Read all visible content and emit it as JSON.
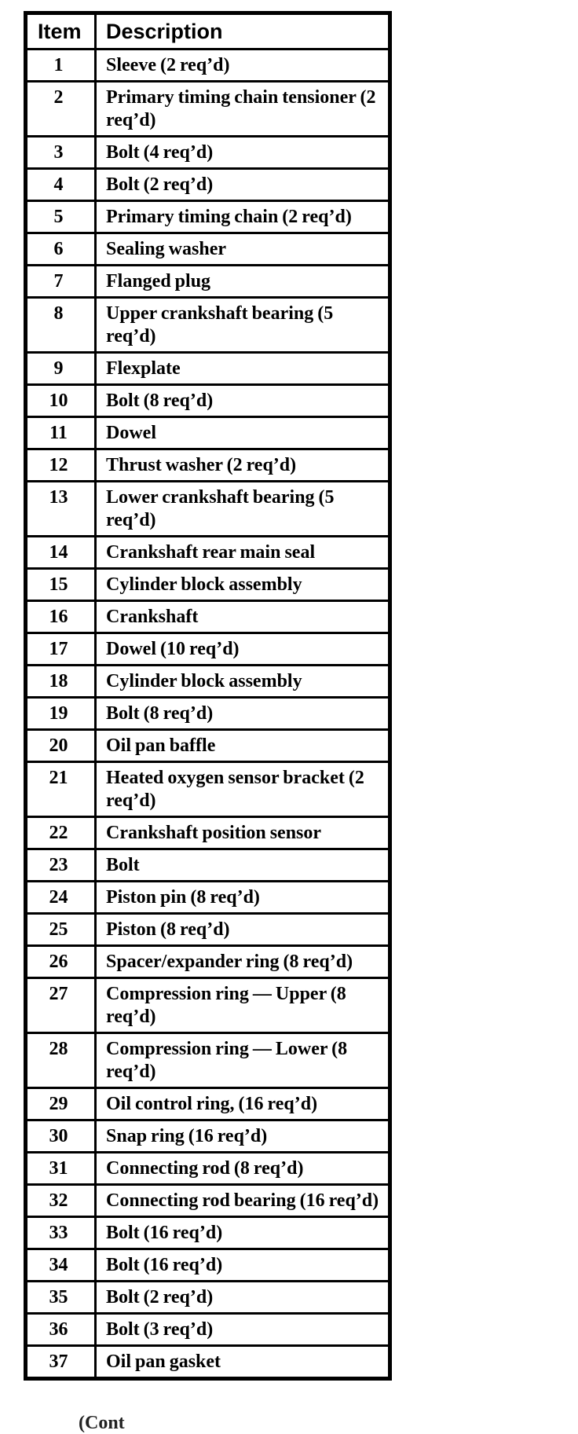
{
  "page": {
    "kind": "scanned parts list table",
    "ink_color": "#000000",
    "paper_color": "#ffffff"
  },
  "table": {
    "headers": {
      "item": "Item",
      "description": "Description"
    },
    "rows": [
      {
        "item": "1",
        "description": "Sleeve (2 req’d)"
      },
      {
        "item": "2",
        "description": "Primary timing chain tensioner (2 req’d)"
      },
      {
        "item": "3",
        "description": "Bolt (4 req’d)"
      },
      {
        "item": "4",
        "description": "Bolt (2 req’d)"
      },
      {
        "item": "5",
        "description": "Primary timing chain (2 req’d)"
      },
      {
        "item": "6",
        "description": "Sealing washer"
      },
      {
        "item": "7",
        "description": "Flanged plug"
      },
      {
        "item": "8",
        "description": "Upper crankshaft bearing (5 req’d)"
      },
      {
        "item": "9",
        "description": "Flexplate"
      },
      {
        "item": "10",
        "description": "Bolt (8 req’d)"
      },
      {
        "item": "11",
        "description": "Dowel"
      },
      {
        "item": "12",
        "description": "Thrust washer (2 req’d)"
      },
      {
        "item": "13",
        "description": "Lower crankshaft bearing (5 req’d)"
      },
      {
        "item": "14",
        "description": "Crankshaft rear main seal"
      },
      {
        "item": "15",
        "description": "Cylinder block assembly"
      },
      {
        "item": "16",
        "description": "Crankshaft"
      },
      {
        "item": "17",
        "description": "Dowel (10 req’d)"
      },
      {
        "item": "18",
        "description": "Cylinder block assembly"
      },
      {
        "item": "19",
        "description": "Bolt (8 req’d)"
      },
      {
        "item": "20",
        "description": "Oil pan baffle"
      },
      {
        "item": "21",
        "description": "Heated oxygen sensor bracket (2 req’d)"
      },
      {
        "item": "22",
        "description": "Crankshaft position sensor"
      },
      {
        "item": "23",
        "description": "Bolt"
      },
      {
        "item": "24",
        "description": "Piston pin (8 req’d)"
      },
      {
        "item": "25",
        "description": "Piston (8 req’d)"
      },
      {
        "item": "26",
        "description": "Spacer/expander ring (8 req’d)"
      },
      {
        "item": "27",
        "description": "Compression ring — Upper (8 req’d)"
      },
      {
        "item": "28",
        "description": "Compression ring — Lower (8 req’d)"
      },
      {
        "item": "29",
        "description": "Oil control ring, (16 req’d)"
      },
      {
        "item": "30",
        "description": "Snap ring (16 req’d)"
      },
      {
        "item": "31",
        "description": "Connecting rod (8 req’d)"
      },
      {
        "item": "32",
        "description": "Connecting rod bearing (16 req’d)"
      },
      {
        "item": "33",
        "description": "Bolt (16 req’d)"
      },
      {
        "item": "34",
        "description": "Bolt (16 req’d)"
      },
      {
        "item": "35",
        "description": "Bolt (2 req’d)"
      },
      {
        "item": "36",
        "description": "Bolt (3 req’d)"
      },
      {
        "item": "37",
        "description": "Oil pan gasket"
      }
    ]
  },
  "footer": {
    "continued_fragment": "(Cont"
  }
}
